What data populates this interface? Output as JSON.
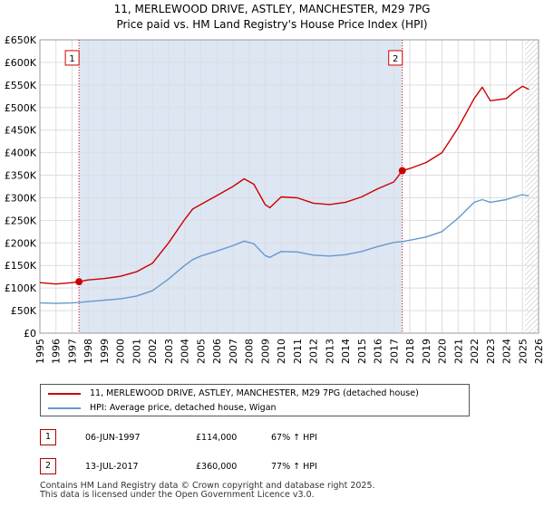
{
  "title_line1": "11, MERLEWOOD DRIVE, ASTLEY, MANCHESTER, M29 7PG",
  "title_line2": "Price paid vs. HM Land Registry's House Price Index (HPI)",
  "chart_data": {
    "type": "line",
    "title": "11, MERLEWOOD DRIVE, ASTLEY, MANCHESTER, M29 7PG — Price paid vs. HM Land Registry's House Price Index (HPI)",
    "xlim": [
      1995,
      2026
    ],
    "ylim": [
      0,
      650000
    ],
    "y_ticks": [
      0,
      50000,
      100000,
      150000,
      200000,
      250000,
      300000,
      350000,
      400000,
      450000,
      500000,
      550000,
      600000,
      650000
    ],
    "y_tick_labels": [
      "£0",
      "£50K",
      "£100K",
      "£150K",
      "£200K",
      "£250K",
      "£300K",
      "£350K",
      "£400K",
      "£450K",
      "£500K",
      "£550K",
      "£600K",
      "£650K"
    ],
    "x_ticks": [
      1995,
      1996,
      1997,
      1998,
      1999,
      2000,
      2001,
      2002,
      2003,
      2004,
      2005,
      2006,
      2007,
      2008,
      2009,
      2010,
      2011,
      2012,
      2013,
      2014,
      2015,
      2016,
      2017,
      2018,
      2019,
      2020,
      2021,
      2022,
      2023,
      2024,
      2025,
      2026
    ],
    "shaded_span": [
      1997.43,
      2017.53
    ],
    "forecast_start": 2025.15,
    "series": [
      {
        "name": "11, MERLEWOOD DRIVE, ASTLEY, MANCHESTER, M29 7PG (detached house)",
        "color": "#cc0000",
        "x": [
          1995.0,
          1996.0,
          1997.0,
          1997.43,
          1998.0,
          1999.0,
          2000.0,
          2001.0,
          2002.0,
          2003.0,
          2004.0,
          2004.5,
          2005.0,
          2006.0,
          2007.0,
          2007.7,
          2008.3,
          2009.0,
          2009.3,
          2010.0,
          2011.0,
          2012.0,
          2013.0,
          2014.0,
          2015.0,
          2016.0,
          2017.0,
          2017.53,
          2018.0,
          2019.0,
          2020.0,
          2021.0,
          2022.0,
          2022.5,
          2023.0,
          2024.0,
          2024.5,
          2025.0,
          2025.4
        ],
        "y": [
          112000,
          109000,
          112000,
          114000,
          118000,
          121000,
          126000,
          136000,
          155000,
          200000,
          252000,
          275000,
          285000,
          305000,
          325000,
          342000,
          330000,
          285000,
          278000,
          302000,
          300000,
          288000,
          285000,
          290000,
          302000,
          320000,
          335000,
          360000,
          365000,
          378000,
          400000,
          455000,
          520000,
          545000,
          515000,
          520000,
          535000,
          547000,
          540000
        ]
      },
      {
        "name": "HPI: Average price, detached house, Wigan",
        "color": "#6699cc",
        "x": [
          1995.0,
          1996.0,
          1997.0,
          1997.43,
          1998.0,
          1999.0,
          2000.0,
          2001.0,
          2002.0,
          2003.0,
          2004.0,
          2004.5,
          2005.0,
          2006.0,
          2007.0,
          2007.7,
          2008.3,
          2009.0,
          2009.3,
          2010.0,
          2011.0,
          2012.0,
          2013.0,
          2014.0,
          2015.0,
          2016.0,
          2017.0,
          2017.53,
          2018.0,
          2019.0,
          2020.0,
          2021.0,
          2022.0,
          2022.5,
          2023.0,
          2024.0,
          2024.5,
          2025.0,
          2025.4
        ],
        "y": [
          67000,
          66000,
          67000,
          68000,
          70000,
          73000,
          76000,
          82000,
          94000,
          120000,
          150000,
          163000,
          171000,
          182000,
          194000,
          204000,
          198000,
          172000,
          168000,
          181000,
          180000,
          173000,
          171000,
          174000,
          181000,
          192000,
          201000,
          203000,
          206000,
          213000,
          225000,
          255000,
          290000,
          296000,
          290000,
          296000,
          302000,
          307000,
          304000
        ]
      }
    ],
    "annotations": [
      {
        "label": "1",
        "x": 1997.43,
        "y": 114000
      },
      {
        "label": "2",
        "x": 2017.53,
        "y": 360000
      }
    ]
  },
  "legend": [
    {
      "label": "11, MERLEWOOD DRIVE, ASTLEY, MANCHESTER, M29 7PG (detached house)",
      "color": "#cc0000"
    },
    {
      "label": "HPI: Average price, detached house, Wigan",
      "color": "#6699cc"
    }
  ],
  "transactions": [
    {
      "badge": "1",
      "date": "06-JUN-1997",
      "price": "£114,000",
      "hpi": "67% ↑ HPI"
    },
    {
      "badge": "2",
      "date": "13-JUL-2017",
      "price": "£360,000",
      "hpi": "77% ↑ HPI"
    }
  ],
  "footer_line1": "Contains HM Land Registry data © Crown copyright and database right 2025.",
  "footer_line2": "This data is licensed under the Open Government Licence v3.0."
}
